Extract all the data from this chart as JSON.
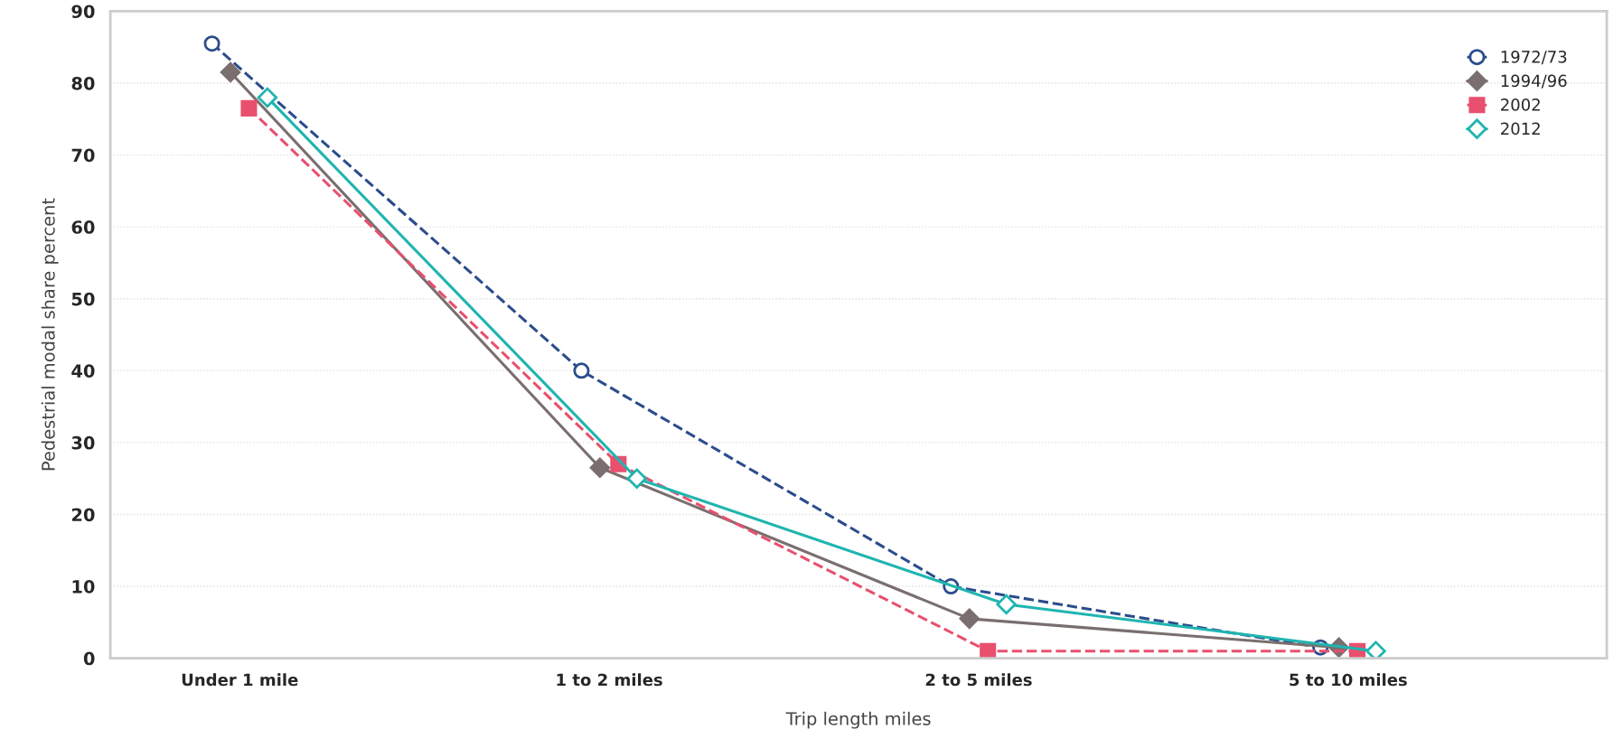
{
  "chart_data": {
    "type": "line",
    "xlabel": "Trip length miles",
    "ylabel": "Pedestrial modal share percent",
    "categories": [
      "Under 1 mile",
      "1 to 2 miles",
      "2 to 5 miles",
      "5 to 10 miles"
    ],
    "series": [
      {
        "name": "1972/73",
        "color": "#2b4c8c",
        "values": [
          85.5,
          40,
          10,
          1.5
        ],
        "marker": "circle",
        "line_style": "dashed"
      },
      {
        "name": "1994/96",
        "color": "#7a6e6e",
        "values": [
          81.5,
          26.5,
          5.5,
          1.5
        ],
        "marker": "diamond",
        "line_style": "solid"
      },
      {
        "name": "2002",
        "color": "#e8506e",
        "values": [
          76.5,
          27,
          1,
          1
        ],
        "marker": "square",
        "line_style": "dashed"
      },
      {
        "name": "2012",
        "color": "#1fb5b0",
        "values": [
          78,
          25,
          7.5,
          1
        ],
        "marker": "diamond",
        "line_style": "solid"
      }
    ],
    "ylim": [
      0,
      90
    ],
    "yticks": [
      0,
      10,
      20,
      30,
      40,
      50,
      60,
      70,
      80,
      90
    ],
    "grid": "y",
    "legend": "top right"
  }
}
